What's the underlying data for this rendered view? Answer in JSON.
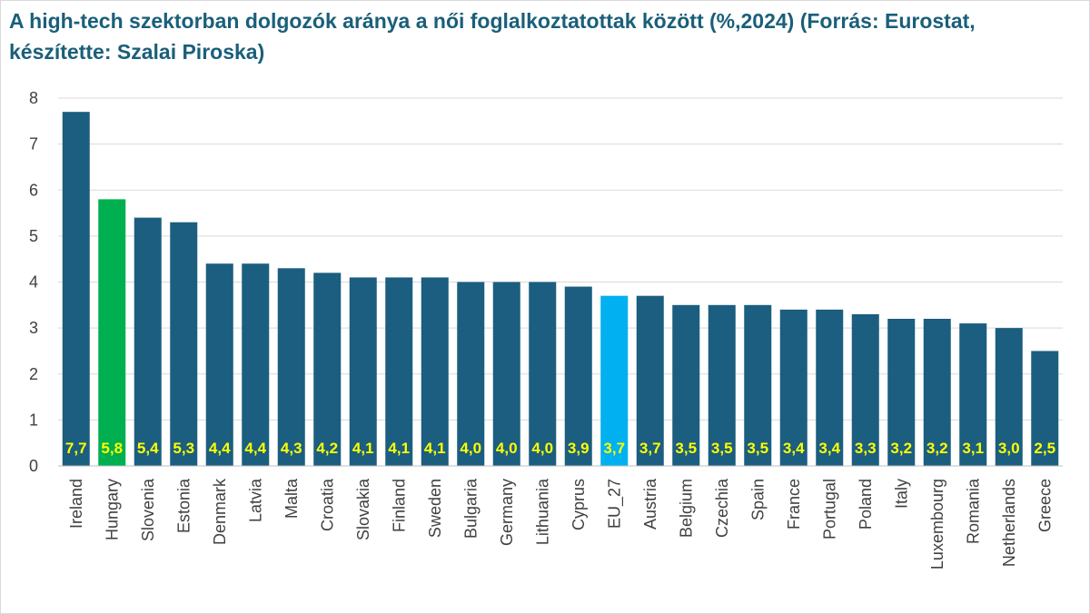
{
  "chart_data": {
    "type": "bar",
    "title": "A high-tech szektorban dolgozók aránya a női foglalkoztatottak között (%,2024) (Forrás: Eurostat, készítette: Szalai Piroska)",
    "xlabel": "",
    "ylabel": "",
    "ylim": [
      0,
      8
    ],
    "yticks": [
      "0",
      "1",
      "2",
      "3",
      "4",
      "5",
      "6",
      "7",
      "8"
    ],
    "grid": true,
    "categories": [
      "Ireland",
      "Hungary",
      "Slovenia",
      "Estonia",
      "Denmark",
      "Latvia",
      "Malta",
      "Croatia",
      "Slovakia",
      "Finland",
      "Sweden",
      "Bulgaria",
      "Germany",
      "Lithuania",
      "Cyprus",
      "EU_27",
      "Austria",
      "Belgium",
      "Czechia",
      "Spain",
      "France",
      "Portugal",
      "Poland",
      "Italy",
      "Luxembourg",
      "Romania",
      "Netherlands",
      "Greece"
    ],
    "values": [
      7.7,
      5.8,
      5.4,
      5.3,
      4.4,
      4.4,
      4.3,
      4.2,
      4.1,
      4.1,
      4.1,
      4.0,
      4.0,
      4.0,
      3.9,
      3.7,
      3.7,
      3.5,
      3.5,
      3.5,
      3.4,
      3.4,
      3.3,
      3.2,
      3.2,
      3.1,
      3.0,
      2.5
    ],
    "data_labels": [
      "7,7",
      "5,8",
      "5,4",
      "5,3",
      "4,4",
      "4,4",
      "4,3",
      "4,2",
      "4,1",
      "4,1",
      "4,1",
      "4,0",
      "4,0",
      "4,0",
      "3,9",
      "3,7",
      "3,7",
      "3,5",
      "3,5",
      "3,5",
      "3,4",
      "3,4",
      "3,3",
      "3,2",
      "3,2",
      "3,1",
      "3,0",
      "2,5"
    ],
    "colors": {
      "default": "#1b5e80",
      "Hungary": "#00b050",
      "EU_27": "#00b0f0",
      "label": "#ffff00",
      "title": "#1a5f7a"
    }
  }
}
